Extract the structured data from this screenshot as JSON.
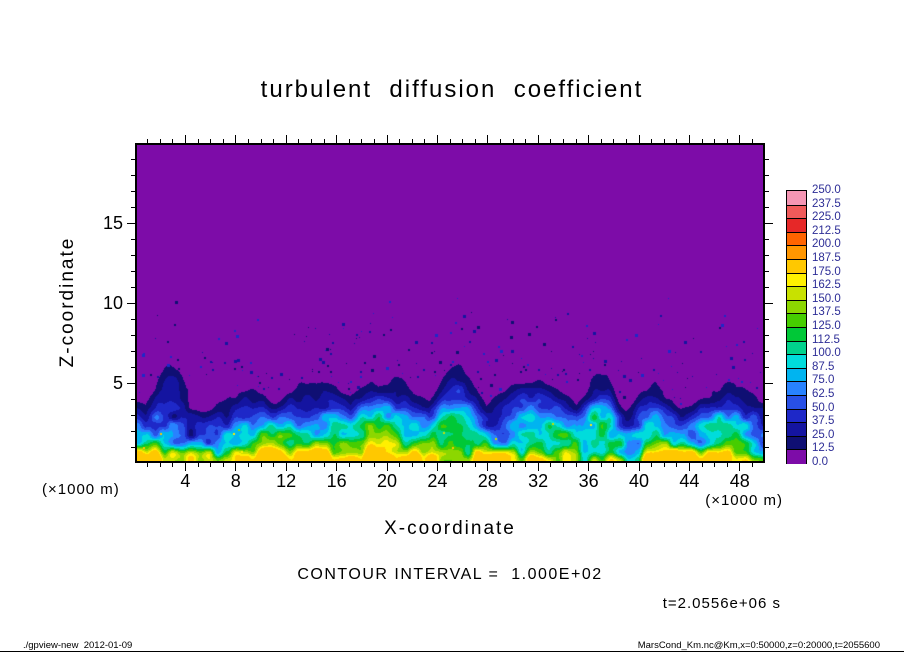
{
  "page": {
    "title": "turbulent  diffusion  coefficient",
    "contour_note": "CONTOUR INTERVAL =  1.000E+02",
    "time_label": "t=2.0556e+06 s",
    "footer_left": "./gpview-new  2012-01-09",
    "footer_right": "MarsCond_Km.nc@Km,x=0:50000,z=0:20000,t=2055600",
    "background_color": "#ffffff"
  },
  "chart_data": {
    "type": "heatmap",
    "title": "turbulent diffusion coefficient",
    "xlabel": "X-coordinate",
    "ylabel": "Z-coordinate",
    "x_unit_note": "(×1000 m)",
    "y_unit_note": "(×1000 m)",
    "xlim": [
      0,
      50
    ],
    "ylim": [
      0,
      20
    ],
    "x_ticks_labeled": [
      4,
      8,
      12,
      16,
      20,
      24,
      28,
      32,
      36,
      40,
      44,
      48
    ],
    "y_ticks_labeled": [
      5,
      10,
      15
    ],
    "x_minor_step": 1,
    "y_minor_step": 1,
    "x_major_step": 4,
    "y_major_step": 5,
    "contour_interval": 100.0,
    "time_seconds": 2055600,
    "colorbar": {
      "labels_top_to_bottom": [
        "250.0",
        "237.5",
        "225.0",
        "212.5",
        "200.0",
        "187.5",
        "175.0",
        "162.5",
        "150.0",
        "137.5",
        "125.0",
        "112.5",
        "100.0",
        "87.5",
        "75.0",
        "62.5",
        "50.0",
        "37.5",
        "25.0",
        "12.5",
        "0.0"
      ],
      "colors_top_to_bottom": [
        "#f596b4",
        "#f05a5a",
        "#e62828",
        "#ff6400",
        "#ff9600",
        "#ffc800",
        "#fff000",
        "#c8e100",
        "#8cd700",
        "#46cd00",
        "#00c837",
        "#00d28c",
        "#00dcdc",
        "#00b4f0",
        "#2882ff",
        "#2850e6",
        "#1e28c8",
        "#1414a0",
        "#0f0f73",
        "#7d0ca8"
      ],
      "level_size": 12.5
    },
    "field_description": "Turbulent mixed layer: diffusion coefficient 12.5–150 (navy/blue/cyan, bright cyan near the surface, rare green-yellow specks) below an undulating top between z≈3 and z≈6.5 (×1000 m) with plume-like updrafts; sparse dark-blue speckles detach up to z≈10; value ≈0 (purple) fills the rest of the domain up to z=20.",
    "render": {
      "seed": 1203,
      "mixed_layer_base": 2.2,
      "plume_count": 9,
      "plume_height_scale": 0.55,
      "field_amplitude": 185,
      "surface_boost": 75,
      "value_clamp": 178,
      "speckle_count": 240,
      "bright_speckle_count": 10
    }
  }
}
